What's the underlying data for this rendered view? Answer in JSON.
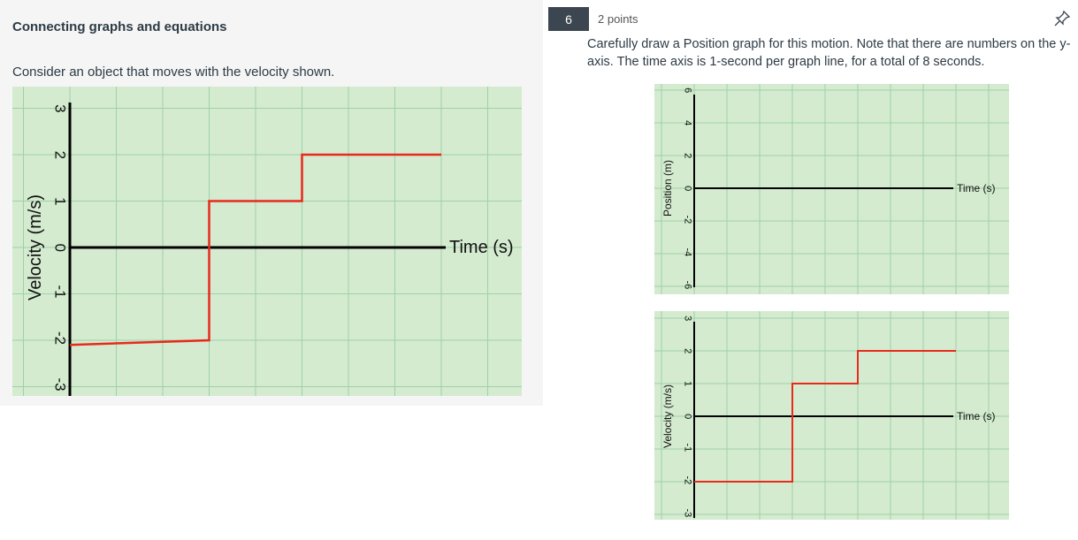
{
  "left": {
    "title": "Connecting graphs and equations",
    "prompt": "Consider an object that moves with the velocity shown."
  },
  "question": {
    "number": "6",
    "points": "2 points",
    "text": "Carefully draw a Position graph for this motion. Note that there are numbers on the y-axis. The time axis is 1-second per graph line, for a total of 8 seconds.",
    "pin_icon": "pin-icon"
  },
  "colors": {
    "grid_bg": "#d4ebd0",
    "grid_line": "#9fd1a6",
    "data_line": "#e8291c",
    "axis": "#000000"
  },
  "chart_data": [
    {
      "type": "line",
      "xlabel": "Time (s)",
      "ylabel": "Velocity (m/s)",
      "yticks": [
        "3",
        "2",
        "1",
        "0",
        "-1",
        "-2",
        "-3"
      ],
      "ylim": [
        -3,
        3
      ],
      "xlim": [
        0,
        8
      ],
      "series": [
        {
          "x": [
            0,
            3,
            3,
            5,
            5,
            8
          ],
          "y": [
            -2.1,
            -2,
            1,
            1,
            2,
            2
          ]
        }
      ]
    },
    {
      "type": "line",
      "xlabel": "Time (s)",
      "ylabel": "Position (m)",
      "yticks": [
        "6",
        "4",
        "2",
        "0",
        "-2",
        "-4",
        "-6"
      ],
      "ylim": [
        -6,
        6
      ],
      "xlim": [
        0,
        8
      ],
      "series": []
    },
    {
      "type": "line",
      "xlabel": "Time (s)",
      "ylabel": "Velocity (m/s)",
      "yticks": [
        "3",
        "2",
        "1",
        "0",
        "-1",
        "-2",
        "-3"
      ],
      "ylim": [
        -3,
        3
      ],
      "xlim": [
        0,
        8
      ],
      "series": [
        {
          "x": [
            0,
            3,
            3,
            5,
            5,
            8
          ],
          "y": [
            -2,
            -2,
            1,
            1,
            2,
            2
          ]
        }
      ]
    }
  ]
}
